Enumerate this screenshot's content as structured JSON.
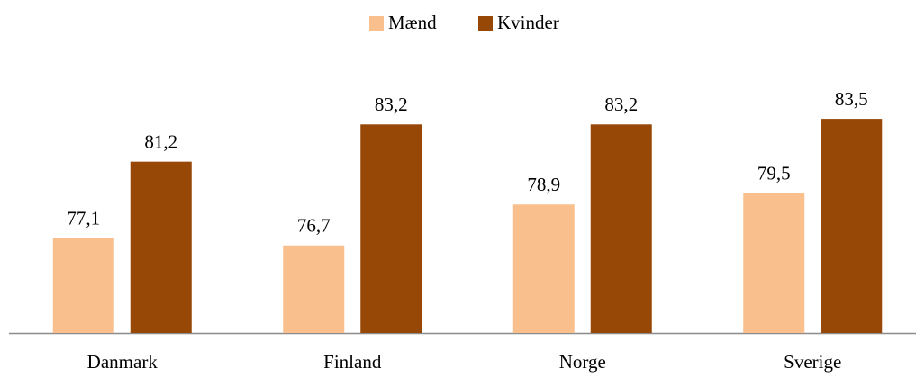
{
  "chart_data": {
    "type": "bar",
    "categories": [
      "Danmark",
      "Finland",
      "Norge",
      "Sverige"
    ],
    "series": [
      {
        "name": "Mænd",
        "color": "#f9c08e",
        "values": [
          77.1,
          76.7,
          78.9,
          79.5
        ],
        "value_labels": [
          "77,1",
          "76,7",
          "78,9",
          "79,5"
        ]
      },
      {
        "name": "Kvinder",
        "color": "#974706",
        "values": [
          81.2,
          83.2,
          83.2,
          83.5
        ],
        "value_labels": [
          "81,2",
          "83,2",
          "83,2",
          "83,5"
        ]
      }
    ],
    "ylim": [
      72,
      88
    ],
    "legend": "top"
  }
}
